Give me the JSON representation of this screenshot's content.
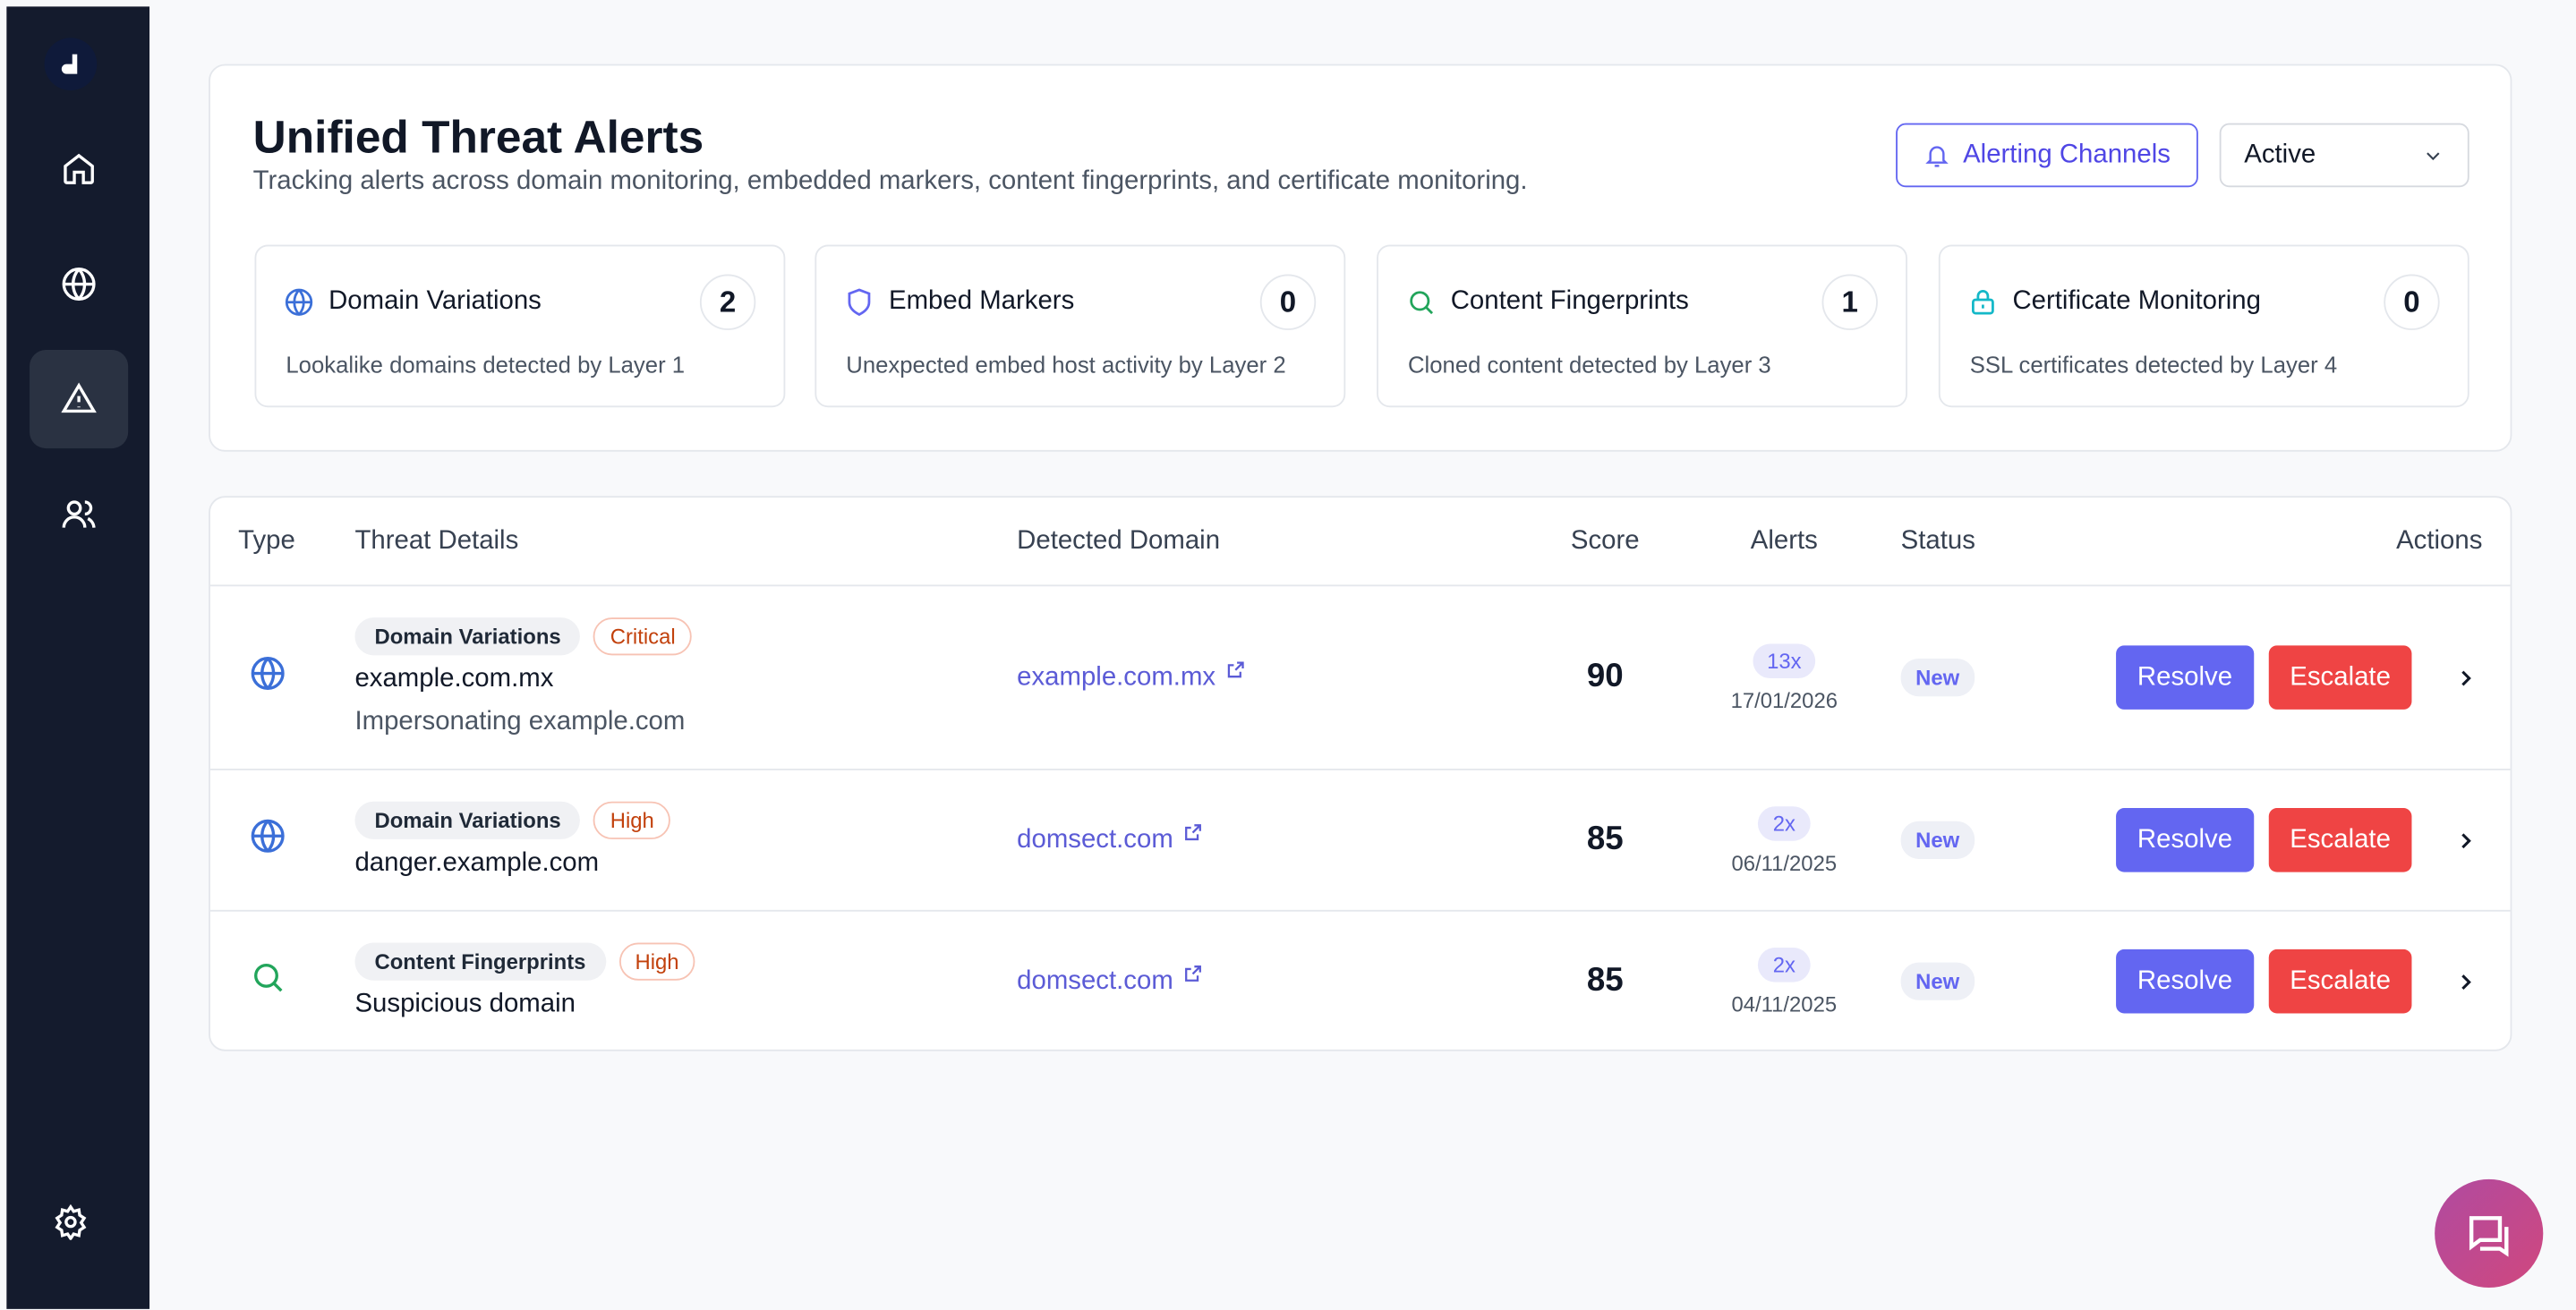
{
  "header": {
    "title": "Unified Threat Alerts",
    "subtitle": "Tracking alerts across domain monitoring, embedded markers, content fingerprints, and certificate monitoring.",
    "alerting_button": "Alerting Channels",
    "status_filter": "Active"
  },
  "cards": [
    {
      "name": "Domain Variations",
      "count": 2,
      "description": "Lookalike domains detected by Layer 1"
    },
    {
      "name": "Embed Markers",
      "count": 0,
      "description": "Unexpected embed host activity by Layer 2"
    },
    {
      "name": "Content Fingerprints",
      "count": 1,
      "description": "Cloned content detected by Layer 3"
    },
    {
      "name": "Certificate Monitoring",
      "count": 0,
      "description": "SSL certificates detected by Layer 4"
    }
  ],
  "table": {
    "columns": [
      "Type",
      "Threat Details",
      "Detected Domain",
      "Score",
      "Alerts",
      "Status",
      "Actions"
    ],
    "rows": [
      {
        "category": "Domain Variations",
        "severity": "Critical",
        "title": "example.com.mx",
        "description": "Impersonating example.com",
        "domain": "example.com.mx",
        "score": 90,
        "alerts": "13x",
        "date": "17/01/2026",
        "status": "New",
        "actions": [
          "Resolve",
          "Escalate"
        ]
      },
      {
        "category": "Domain Variations",
        "severity": "High",
        "title": "danger.example.com",
        "domain": "domsect.com",
        "score": 85,
        "alerts": "2x",
        "date": "06/11/2025",
        "status": "New",
        "actions": [
          "Resolve",
          "Escalate"
        ]
      },
      {
        "category": "Content Fingerprints",
        "severity": "High",
        "title": "Suspicious domain",
        "domain": "domsect.com",
        "score": 85,
        "alerts": "2x",
        "date": "04/11/2025",
        "status": "New",
        "actions": [
          "Resolve",
          "Escalate"
        ]
      }
    ]
  }
}
